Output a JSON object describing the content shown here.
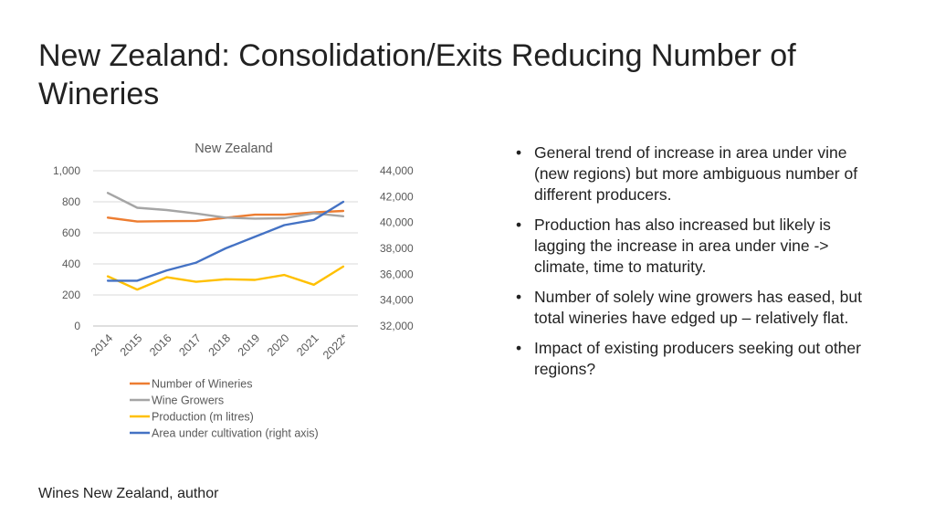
{
  "slide": {
    "title": "New Zealand: Consolidation/Exits Reducing Number of Wineries",
    "source": "Wines New Zealand, author"
  },
  "bullets": [
    "General trend of increase in area under vine (new regions) but more ambiguous number of different producers.",
    "Production has also increased but likely is lagging the increase in area under vine -> climate, time to maturity.",
    "Number of solely wine growers has eased, but total wineries have edged up – relatively flat.",
    "Impact of existing producers seeking out other regions?"
  ],
  "chart_data": {
    "type": "line",
    "title": "New Zealand",
    "categories": [
      "2014",
      "2015",
      "2016",
      "2017",
      "2018",
      "2019",
      "2020",
      "2021",
      "2022*"
    ],
    "left_axis": {
      "ylim": [
        0,
        1000
      ],
      "ticks": [
        0,
        200,
        400,
        600,
        800,
        1000
      ],
      "tick_labels": [
        "0",
        "200",
        "400",
        "600",
        "800",
        "1,000"
      ]
    },
    "right_axis": {
      "ylim": [
        32000,
        44000
      ],
      "ticks": [
        32000,
        34000,
        36000,
        38000,
        40000,
        42000,
        44000
      ],
      "tick_labels": [
        "32,000",
        "34,000",
        "36,000",
        "38,000",
        "40,000",
        "42,000",
        "44,000"
      ]
    },
    "grid": true,
    "legend_position": "bottom",
    "series": [
      {
        "name": "Number of Wineries",
        "axis": "left",
        "color": "#ED7D31",
        "values": [
          698,
          673,
          675,
          677,
          697,
          717,
          717,
          732,
          741
        ]
      },
      {
        "name": "Wine Growers",
        "axis": "left",
        "color": "#A5A5A5",
        "values": [
          857,
          762,
          747,
          725,
          698,
          692,
          694,
          726,
          707
        ]
      },
      {
        "name": "Production (m litres)",
        "axis": "left",
        "color": "#FFC000",
        "values": [
          320,
          235,
          314,
          285,
          301,
          297,
          329,
          266,
          383
        ]
      },
      {
        "name": "Area under cultivation (right axis)",
        "axis": "right",
        "color": "#4472C4",
        "values": [
          35500,
          35500,
          36300,
          36900,
          38000,
          38900,
          39800,
          40200,
          41600
        ]
      }
    ]
  }
}
